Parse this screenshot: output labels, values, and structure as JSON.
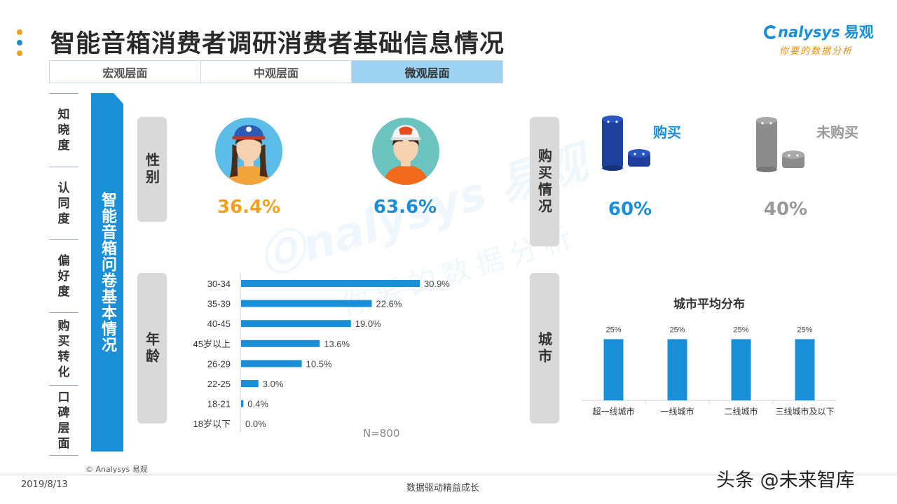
{
  "title": "智能音箱消费者调研消费者基础信息情况",
  "logo": {
    "brand": "nalysys",
    "brand_cn": "易观",
    "tagline": "你要的数据分析"
  },
  "colors": {
    "accent": "#1a8fd8",
    "orange": "#f4a21b",
    "gray": "#999999",
    "dot_orange": "#f4a21b",
    "dot_blue": "#1a8fd8"
  },
  "tabs": [
    {
      "label": "宏观层面",
      "active": false
    },
    {
      "label": "中观层面",
      "active": false
    },
    {
      "label": "微观层面",
      "active": true
    }
  ],
  "left_nav": [
    "知晓度",
    "认同度",
    "偏好度",
    "购买转化",
    "口碑层面"
  ],
  "ribbon_text": "智能音箱问卷基本情况",
  "sections": {
    "gender": "性别",
    "age": "年龄",
    "purchase": "购买情况",
    "city": "城市"
  },
  "gender": {
    "female_pct": "36.4%",
    "male_pct": "63.6%"
  },
  "purchase": {
    "bought_label": "购买",
    "not_bought_label": "未购买",
    "bought_pct": "60%",
    "not_bought_pct": "40%"
  },
  "sample": "N=800",
  "watermark": {
    "brand": "nalysys 易观",
    "tagline": "你要的数据分析"
  },
  "chart_data": [
    {
      "type": "bar",
      "orientation": "horizontal",
      "categories": [
        "30-34",
        "35-39",
        "40-45",
        "45岁以上",
        "26-29",
        "22-25",
        "18-21",
        "18岁以下"
      ],
      "values": [
        30.9,
        22.6,
        19.0,
        13.6,
        10.5,
        3.0,
        0.4,
        0.0
      ],
      "labels": [
        "30.9%",
        "22.6%",
        "19.0%",
        "13.6%",
        "10.5%",
        "3.0%",
        "0.4%",
        "0.0%"
      ],
      "xlim": [
        0,
        35
      ],
      "color": "#1a8fd8"
    },
    {
      "type": "bar",
      "title": "城市平均分布",
      "categories": [
        "超一线城市",
        "一线城市",
        "二线城市",
        "三线城市及以下"
      ],
      "values": [
        25,
        25,
        25,
        25
      ],
      "labels": [
        "25%",
        "25%",
        "25%",
        "25%"
      ],
      "ylim": [
        0,
        30
      ],
      "color": "#1a8fd8"
    }
  ],
  "footer": {
    "copyright": "© Analysys 易观",
    "date": "2019/8/13",
    "slogan": "数据驱动精益成长",
    "source": "头条 @未来智库"
  }
}
